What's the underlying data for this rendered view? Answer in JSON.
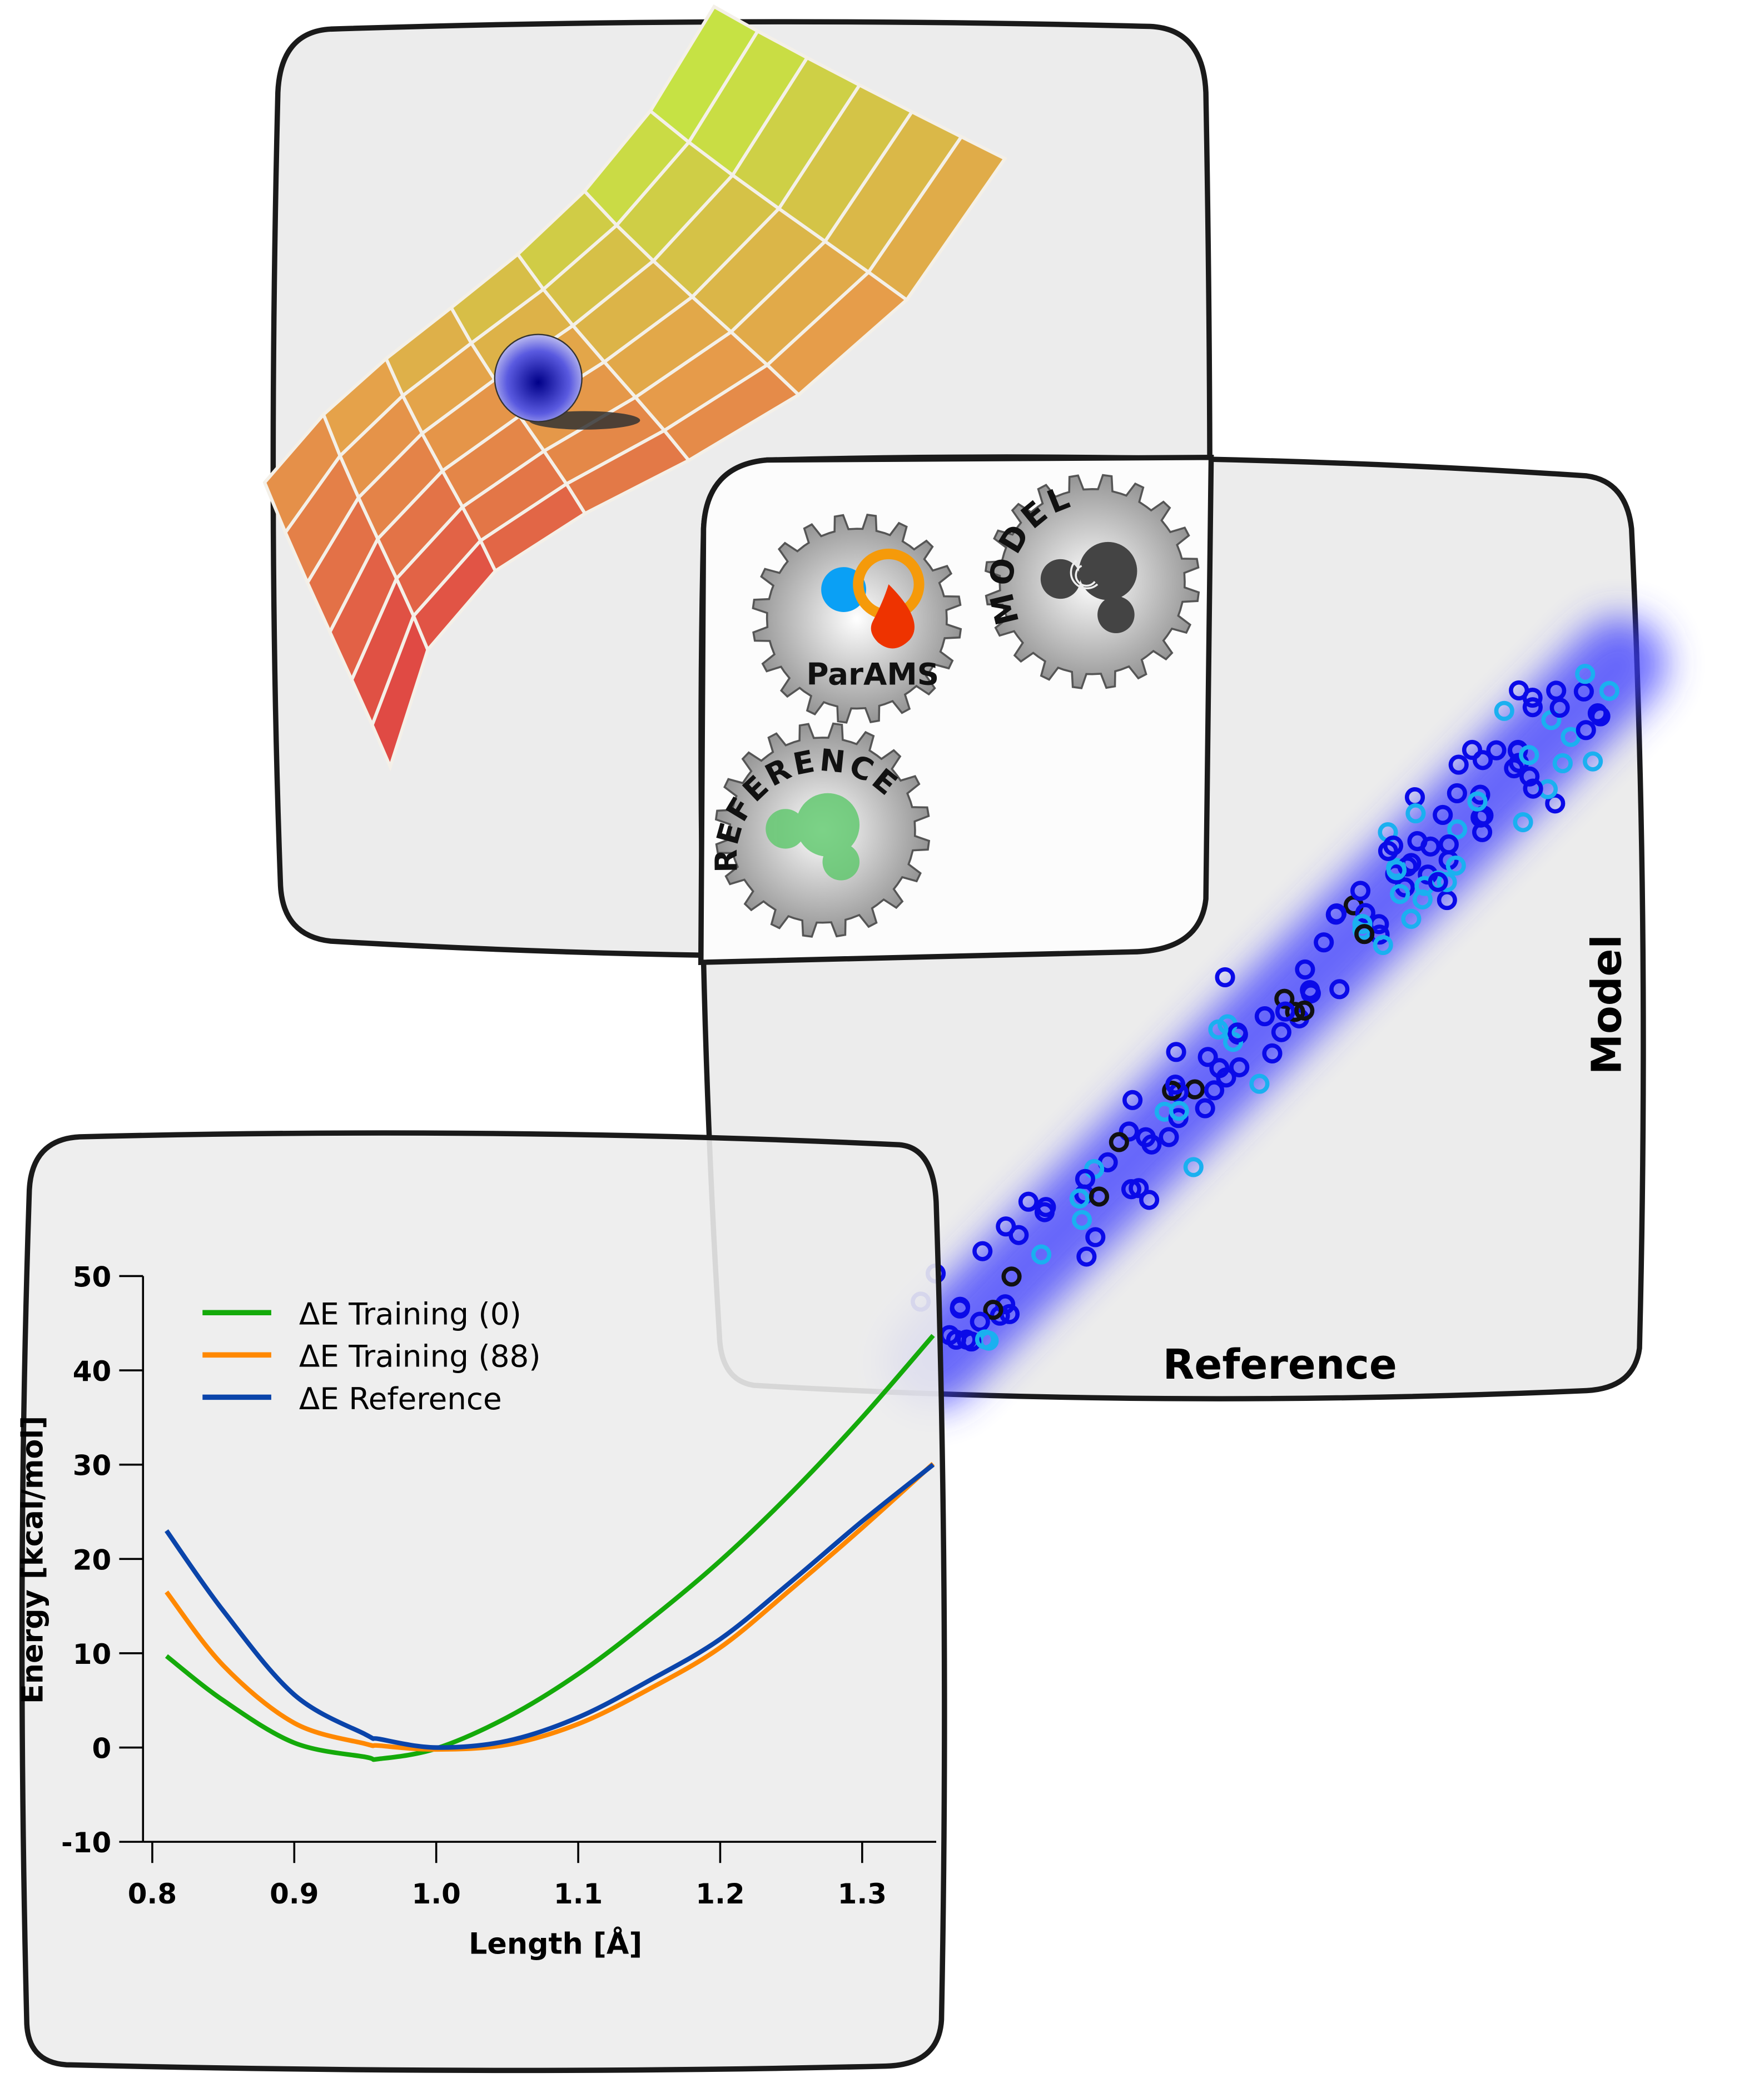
{
  "surface_panel": {
    "surface_colors": [
      "#e04a44",
      "#e6a04a",
      "#c6e244"
    ],
    "grid_color": "#f4f0e8",
    "ball_color": "#1a1ad0"
  },
  "workflow_panel": {
    "gears": [
      {
        "label": "ParAMS",
        "icon": "params-logo-icon"
      },
      {
        "label": "MODEL",
        "icon": "model-molecule-icon"
      },
      {
        "label": "REFERENCE",
        "icon": "reference-molecule-icon"
      }
    ],
    "params_logo_colors": [
      "#0aa0f5",
      "#f59a0a",
      "#ee3300"
    ],
    "model_color": "#444444",
    "reference_color": "#5cc86a"
  },
  "scatter_panel": {
    "xlabel": "Reference",
    "ylabel": "Model",
    "point_colors": {
      "main": "#0a0ae8",
      "secondary": "#1ab0f0",
      "highlight": "#111111"
    },
    "glow_color": "#3a3aff"
  },
  "chart_data": {
    "type": "line",
    "title": "",
    "xlabel": "Length [Å]",
    "ylabel": "Energy [kcal/mol]",
    "xlim": [
      0.8,
      1.35
    ],
    "ylim": [
      -10,
      50
    ],
    "xticks": [
      "0.8",
      "0.9",
      "1.0",
      "1.1",
      "1.2",
      "1.3"
    ],
    "yticks": [
      "50",
      "40",
      "30",
      "20",
      "10",
      "0",
      "-10"
    ],
    "grid": false,
    "legend_position": "top-left",
    "x": [
      0.81,
      0.85,
      0.9,
      0.95,
      0.96,
      1.0,
      1.05,
      1.1,
      1.15,
      1.2,
      1.25,
      1.3,
      1.35
    ],
    "series": [
      {
        "name": "ΔE Training (0)",
        "color": "#14aa0a",
        "values": [
          9.7,
          5.0,
          0.5,
          -1.0,
          -1.2,
          -0.1,
          3.2,
          7.8,
          13.5,
          19.8,
          27.0,
          35.0,
          43.7
        ]
      },
      {
        "name": "ΔE Training (88)",
        "color": "#ff8800",
        "values": [
          16.5,
          8.7,
          2.6,
          0.4,
          0.2,
          -0.2,
          0.3,
          2.5,
          6.2,
          10.6,
          16.8,
          23.3,
          30.1
        ]
      },
      {
        "name": "ΔE Reference",
        "color": "#0a44aa",
        "values": [
          23.0,
          14.5,
          5.6,
          1.4,
          0.9,
          0.0,
          0.7,
          3.2,
          7.1,
          11.5,
          17.6,
          24.0,
          30.0
        ]
      }
    ]
  }
}
